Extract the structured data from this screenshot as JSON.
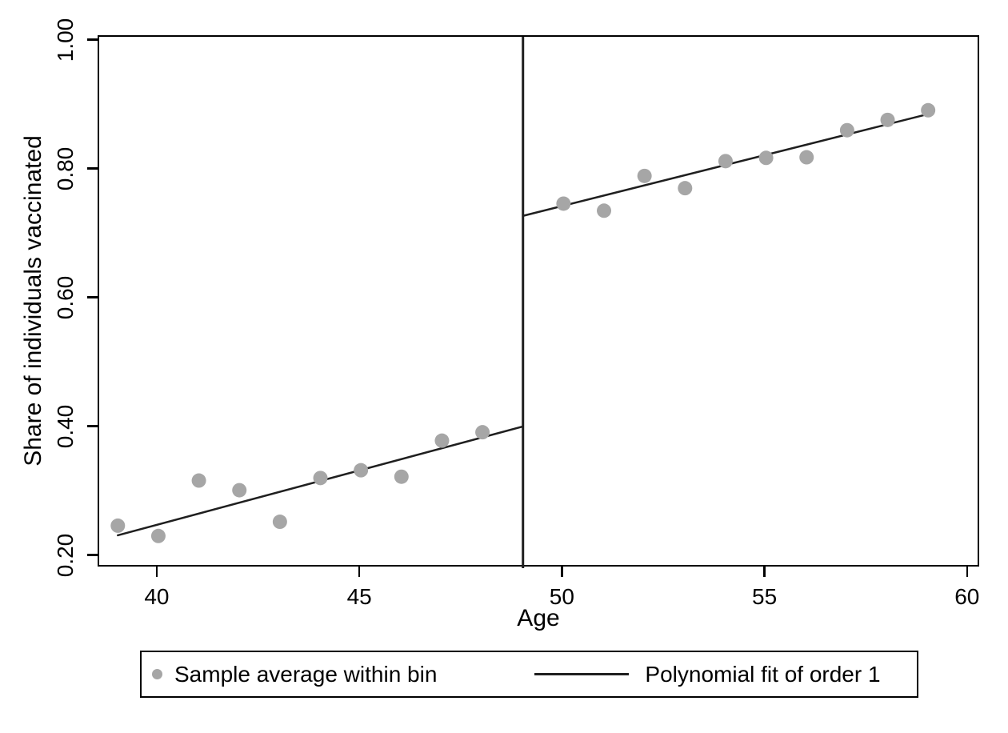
{
  "figure": {
    "background": "#ffffff",
    "axis_color": "#000000",
    "point_color": "#a6a6a6",
    "line_color": "#1f1f1f"
  },
  "chart_data": {
    "type": "scatter",
    "title": "",
    "xlabel": "Age",
    "ylabel": "Share of individuals vaccinated",
    "xlim": [
      38.54,
      60.3
    ],
    "ylim": [
      0.182,
      1.007
    ],
    "x_ticks": [
      40,
      45,
      50,
      55,
      60
    ],
    "x_tick_labels": [
      "40",
      "45",
      "50",
      "55",
      "60"
    ],
    "y_ticks": [
      0.2,
      0.4,
      0.6,
      0.8,
      1.0
    ],
    "y_tick_labels": [
      "0.20",
      "0.40",
      "0.60",
      "0.80",
      "1.00"
    ],
    "grid": false,
    "cutoff_x": 49,
    "series": [
      {
        "name": "Sample average within bin",
        "type": "scatter",
        "color": "#a6a6a6",
        "marker_radius": 9,
        "x": [
          39,
          40,
          41,
          42,
          43,
          44,
          45,
          46,
          47,
          48,
          50,
          51,
          52,
          53,
          54,
          55,
          56,
          57,
          58,
          59
        ],
        "y": [
          0.248,
          0.232,
          0.318,
          0.303,
          0.254,
          0.322,
          0.334,
          0.324,
          0.38,
          0.393,
          0.748,
          0.737,
          0.791,
          0.772,
          0.814,
          0.819,
          0.82,
          0.862,
          0.878,
          0.893
        ]
      },
      {
        "name": "Polynomial fit of order 1",
        "type": "line",
        "color": "#1f1f1f",
        "stroke_width": 2.5,
        "segments": [
          {
            "x": [
              39,
              49
            ],
            "y": [
              0.233,
              0.402
            ]
          },
          {
            "x": [
              49,
              59
            ],
            "y": [
              0.729,
              0.887
            ]
          }
        ]
      }
    ],
    "legend": {
      "position": "bottom",
      "border": true,
      "entries": [
        {
          "marker": "dot",
          "label": "Sample average within bin"
        },
        {
          "marker": "line",
          "label": "Polynomial fit of order 1"
        }
      ]
    }
  }
}
